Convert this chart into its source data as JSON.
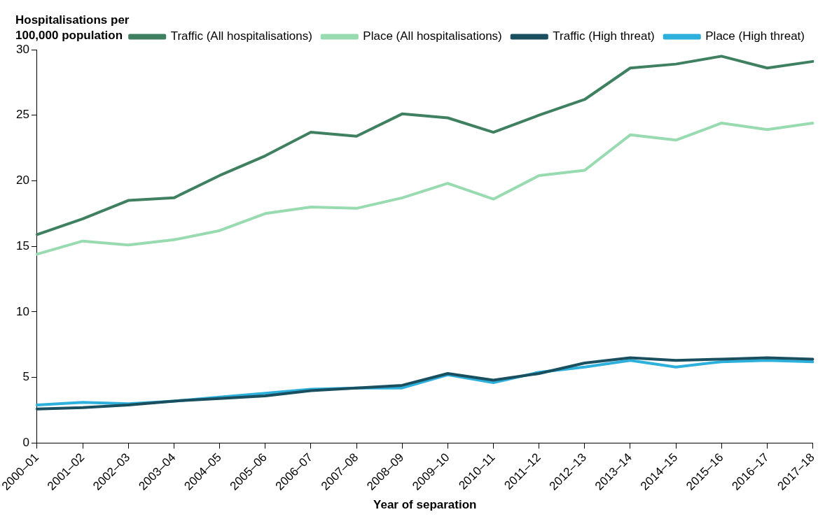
{
  "chart_data": {
    "type": "line",
    "ylabel": "Hospitalisations per 100,000 population",
    "xlabel": "Year of separation",
    "categories": [
      "2000–01",
      "2001–02",
      "2002–03",
      "2003–04",
      "2004–05",
      "2005–06",
      "2006–07",
      "2007–08",
      "2008–09",
      "2009–10",
      "2010–11",
      "2011–12",
      "2012–13",
      "2013–14",
      "2014–15",
      "2015–16",
      "2016–17",
      "2017–18"
    ],
    "series": [
      {
        "name": "Traffic (All hospitalisations)",
        "color": "#3f8060",
        "values": [
          15.9,
          17.1,
          18.5,
          18.7,
          20.4,
          21.9,
          23.7,
          23.4,
          25.1,
          24.8,
          23.7,
          25.0,
          26.2,
          28.6,
          28.9,
          29.5,
          28.6,
          29.1
        ]
      },
      {
        "name": "Place (All hospitalisations)",
        "color": "#98dbb0",
        "values": [
          14.4,
          15.4,
          15.1,
          15.5,
          16.2,
          17.5,
          18.0,
          17.9,
          18.7,
          19.8,
          18.6,
          20.4,
          20.8,
          23.5,
          23.1,
          24.4,
          23.9,
          24.4
        ]
      },
      {
        "name": "Traffic (High threat)",
        "color": "#1a4f60",
        "values": [
          2.6,
          2.7,
          2.9,
          3.2,
          3.4,
          3.6,
          4.0,
          4.2,
          4.4,
          5.3,
          4.8,
          5.3,
          6.1,
          6.5,
          6.3,
          6.4,
          6.5,
          6.4
        ]
      },
      {
        "name": "Place (High threat)",
        "color": "#2eb0dc",
        "values": [
          2.9,
          3.1,
          3.0,
          3.2,
          3.5,
          3.8,
          4.1,
          4.2,
          4.2,
          5.2,
          4.6,
          5.4,
          5.8,
          6.3,
          5.8,
          6.2,
          6.3,
          6.2
        ]
      }
    ],
    "ylim": [
      0,
      30
    ],
    "yticks": [
      0,
      5,
      10,
      15,
      20,
      25,
      30
    ],
    "grid": false,
    "legend": "top",
    "marker": "none",
    "line_style": "solid"
  }
}
